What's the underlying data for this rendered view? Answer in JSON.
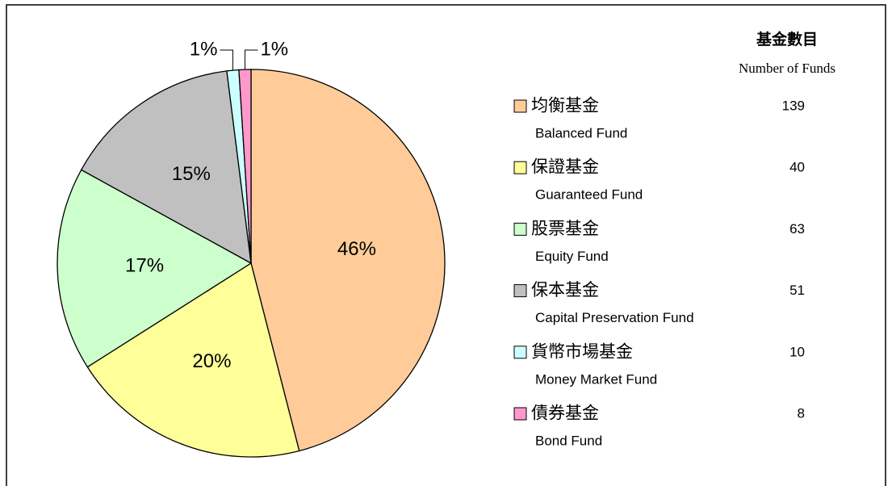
{
  "chart_data": {
    "type": "pie",
    "legend_title": "基金數目",
    "legend_subtitle": "Number of Funds",
    "categories": [
      "均衡基金",
      "保證基金",
      "股票基金",
      "保本基金",
      "貨幣市場基金",
      "債券基金"
    ],
    "categories_en": [
      "Balanced Fund",
      "Guaranteed Fund",
      "Equity Fund",
      "Capital Preservation Fund",
      "Money Market Fund",
      "Bond Fund"
    ],
    "values": [
      46,
      20,
      17,
      15,
      1,
      1
    ],
    "value_labels": [
      "46%",
      "20%",
      "17%",
      "15%",
      "1%",
      "1%"
    ],
    "counts": [
      139,
      40,
      63,
      51,
      10,
      8
    ],
    "colors": [
      "#FFCC99",
      "#FFFF99",
      "#CCFFCC",
      "#C0C0C0",
      "#CCFFFF",
      "#FF99CC"
    ]
  }
}
